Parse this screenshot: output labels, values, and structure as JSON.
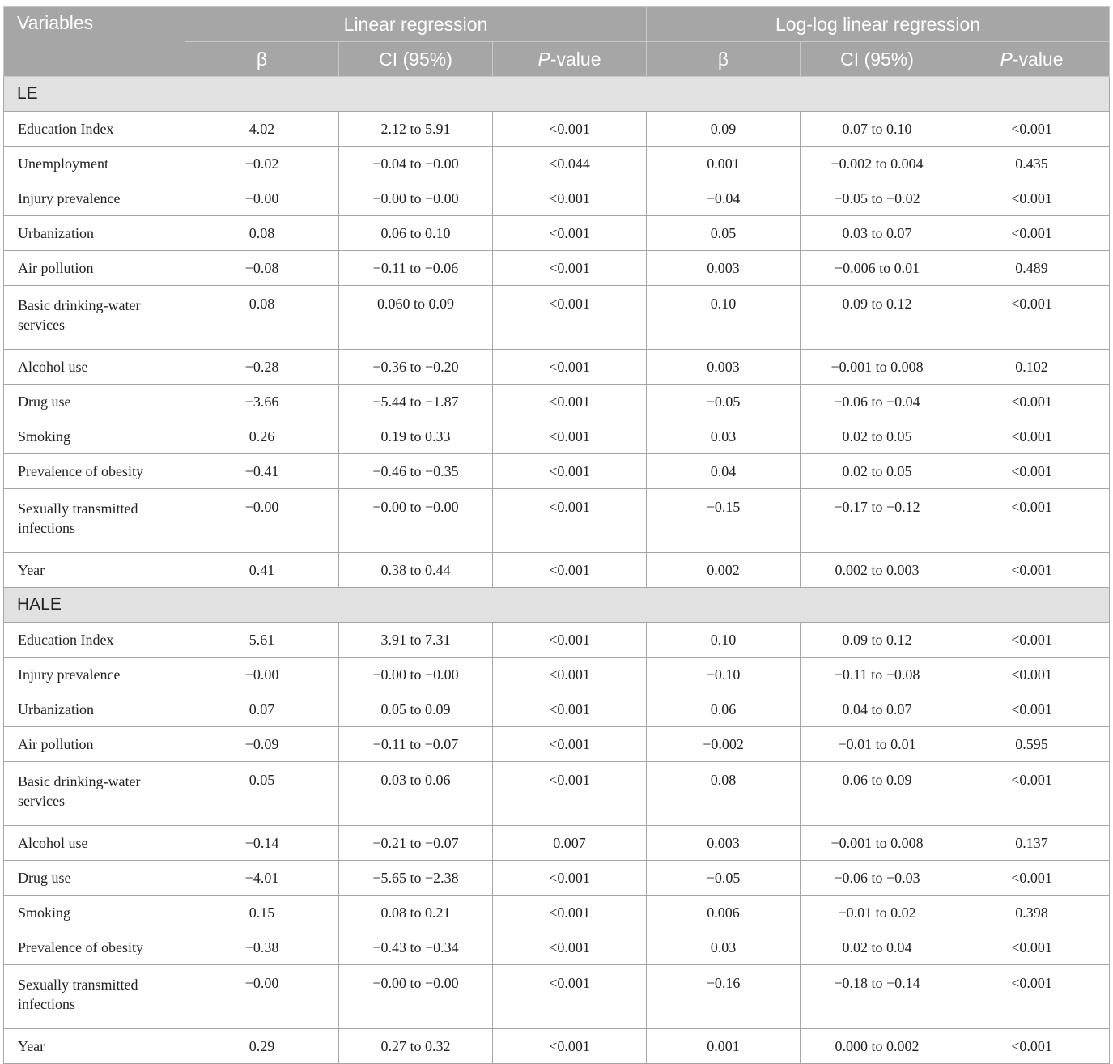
{
  "header": {
    "variables": "Variables",
    "linear": "Linear regression",
    "loglog": "Log-log linear regression",
    "beta": "β",
    "ci": "CI (95%)",
    "p_italic": "P",
    "p_rest": "-value"
  },
  "sections": [
    {
      "label": "LE",
      "rows": [
        {
          "variable": "Education Index",
          "lin_beta": "4.02",
          "lin_ci": "2.12 to 5.91",
          "lin_p": "<0.001",
          "log_beta": "0.09",
          "log_ci": "0.07 to 0.10",
          "log_p": "<0.001"
        },
        {
          "variable": "Unemployment",
          "lin_beta": "−0.02",
          "lin_ci": "−0.04 to −0.00",
          "lin_p": "<0.044",
          "log_beta": "0.001",
          "log_ci": "−0.002 to 0.004",
          "log_p": "0.435"
        },
        {
          "variable": "Injury prevalence",
          "lin_beta": "−0.00",
          "lin_ci": "−0.00 to −0.00",
          "lin_p": "<0.001",
          "log_beta": "−0.04",
          "log_ci": "−0.05 to −0.02",
          "log_p": "<0.001"
        },
        {
          "variable": "Urbanization",
          "lin_beta": "0.08",
          "lin_ci": "0.06 to 0.10",
          "lin_p": "<0.001",
          "log_beta": "0.05",
          "log_ci": "0.03 to 0.07",
          "log_p": "<0.001"
        },
        {
          "variable": "Air pollution",
          "lin_beta": "−0.08",
          "lin_ci": "−0.11 to −0.06",
          "lin_p": "<0.001",
          "log_beta": "0.003",
          "log_ci": "−0.006 to 0.01",
          "log_p": "0.489"
        },
        {
          "variable": "Basic drinking-water services",
          "tall": true,
          "lin_beta": "0.08",
          "lin_ci": "0.060 to 0.09",
          "lin_p": "<0.001",
          "log_beta": "0.10",
          "log_ci": "0.09 to 0.12",
          "log_p": "<0.001"
        },
        {
          "variable": "Alcohol use",
          "lin_beta": "−0.28",
          "lin_ci": "−0.36 to −0.20",
          "lin_p": "<0.001",
          "log_beta": "0.003",
          "log_ci": "−0.001 to 0.008",
          "log_p": "0.102"
        },
        {
          "variable": "Drug use",
          "lin_beta": "−3.66",
          "lin_ci": "−5.44 to −1.87",
          "lin_p": "<0.001",
          "log_beta": "−0.05",
          "log_ci": "−0.06 to −0.04",
          "log_p": "<0.001"
        },
        {
          "variable": "Smoking",
          "lin_beta": "0.26",
          "lin_ci": "0.19 to 0.33",
          "lin_p": "<0.001",
          "log_beta": "0.03",
          "log_ci": "0.02 to 0.05",
          "log_p": "<0.001"
        },
        {
          "variable": "Prevalence of obesity",
          "lin_beta": "−0.41",
          "lin_ci": "−0.46 to −0.35",
          "lin_p": "<0.001",
          "log_beta": "0.04",
          "log_ci": "0.02 to 0.05",
          "log_p": "<0.001"
        },
        {
          "variable": "Sexually transmitted infections",
          "tall": true,
          "lin_beta": "−0.00",
          "lin_ci": "−0.00 to −0.00",
          "lin_p": "<0.001",
          "log_beta": "−0.15",
          "log_ci": "−0.17 to −0.12",
          "log_p": "<0.001"
        },
        {
          "variable": "Year",
          "lin_beta": "0.41",
          "lin_ci": "0.38 to 0.44",
          "lin_p": "<0.001",
          "log_beta": "0.002",
          "log_ci": "0.002 to 0.003",
          "log_p": "<0.001"
        }
      ]
    },
    {
      "label": "HALE",
      "rows": [
        {
          "variable": "Education Index",
          "lin_beta": "5.61",
          "lin_ci": "3.91 to 7.31",
          "lin_p": "<0.001",
          "log_beta": "0.10",
          "log_ci": "0.09 to 0.12",
          "log_p": "<0.001"
        },
        {
          "variable": "Injury prevalence",
          "lin_beta": "−0.00",
          "lin_ci": "−0.00 to −0.00",
          "lin_p": "<0.001",
          "log_beta": "−0.10",
          "log_ci": "−0.11 to −0.08",
          "log_p": "<0.001"
        },
        {
          "variable": "Urbanization",
          "lin_beta": "0.07",
          "lin_ci": "0.05 to 0.09",
          "lin_p": "<0.001",
          "log_beta": "0.06",
          "log_ci": "0.04 to 0.07",
          "log_p": "<0.001"
        },
        {
          "variable": "Air pollution",
          "lin_beta": "−0.09",
          "lin_ci": "−0.11 to −0.07",
          "lin_p": "<0.001",
          "log_beta": "−0.002",
          "log_ci": "−0.01 to 0.01",
          "log_p": "0.595"
        },
        {
          "variable": "Basic drinking-water services",
          "tall": true,
          "lin_beta": "0.05",
          "lin_ci": "0.03 to 0.06",
          "lin_p": "<0.001",
          "log_beta": "0.08",
          "log_ci": "0.06 to 0.09",
          "log_p": "<0.001"
        },
        {
          "variable": "Alcohol use",
          "lin_beta": "−0.14",
          "lin_ci": "−0.21 to −0.07",
          "lin_p": "0.007",
          "log_beta": "0.003",
          "log_ci": "−0.001 to 0.008",
          "log_p": "0.137"
        },
        {
          "variable": "Drug use",
          "lin_beta": "−4.01",
          "lin_ci": "−5.65 to −2.38",
          "lin_p": "<0.001",
          "log_beta": "−0.05",
          "log_ci": "−0.06 to −0.03",
          "log_p": "<0.001"
        },
        {
          "variable": "Smoking",
          "lin_beta": "0.15",
          "lin_ci": "0.08 to 0.21",
          "lin_p": "<0.001",
          "log_beta": "0.006",
          "log_ci": "−0.01 to 0.02",
          "log_p": "0.398"
        },
        {
          "variable": "Prevalence of obesity",
          "lin_beta": "−0.38",
          "lin_ci": "−0.43 to −0.34",
          "lin_p": "<0.001",
          "log_beta": "0.03",
          "log_ci": "0.02 to 0.04",
          "log_p": "<0.001"
        },
        {
          "variable": "Sexually transmitted infections",
          "tall": true,
          "lin_beta": "−0.00",
          "lin_ci": "−0.00 to −0.00",
          "lin_p": "<0.001",
          "log_beta": "−0.16",
          "log_ci": "−0.18 to −0.14",
          "log_p": "<0.001"
        },
        {
          "variable": "Year",
          "lin_beta": "0.29",
          "lin_ci": "0.27 to 0.32",
          "lin_p": "<0.001",
          "log_beta": "0.001",
          "log_ci": "0.000 to 0.002",
          "log_p": "<0.001"
        }
      ]
    }
  ]
}
